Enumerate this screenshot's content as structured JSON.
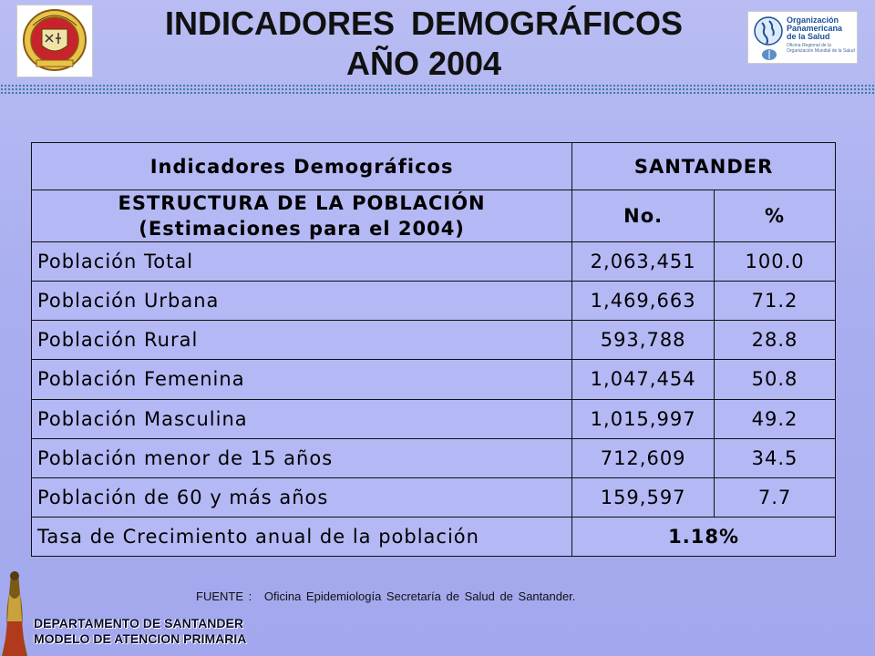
{
  "header": {
    "title_line1": "INDICADORES   DEMOGRÁFICOS",
    "title_line2": "AÑO 2004",
    "left_logo": {
      "name": "departamento-de-santander-seal",
      "text": "DEPARTAMENTO DE SANTANDER"
    },
    "right_logo": {
      "name_lines": [
        "Organización",
        "Panamericana",
        "de la Salud"
      ],
      "subtitle": "Oficina Regional de la Organización Mundial de la Salud",
      "brand_color": "#1b4f96"
    }
  },
  "table": {
    "heading": "Indicadores Demográficos",
    "structure_line1": "ESTRUCTURA DE LA POBLACIÓN",
    "structure_line2": "(Estimaciones para el 2004)",
    "region": "SANTANDER",
    "col_number": "No.",
    "col_percent": "%",
    "rows": [
      {
        "label": "Población Total",
        "number": "2,063,451",
        "percent": "100.0"
      },
      {
        "label": "Población Urbana",
        "number": "1,469,663",
        "percent": "71.2"
      },
      {
        "label": "Población Rural",
        "number": "593,788",
        "percent": "28.8"
      },
      {
        "label": "Población Femenina",
        "number": "1,047,454",
        "percent": "50.8"
      },
      {
        "label": "Población Masculina",
        "number": "1,015,997",
        "percent": "49.2"
      },
      {
        "label": "Población menor de 15 años",
        "number": "712,609",
        "percent": "34.5"
      },
      {
        "label": "Población de 60 y más años",
        "number": "159,597",
        "percent": "7.7"
      }
    ],
    "growth": {
      "label": "Tasa de Crecimiento anual de la población",
      "value": "1.18%"
    }
  },
  "source": {
    "label": "FUENTE :",
    "text": "Oficina Epidemiología Secretaría de Salud de Santander."
  },
  "footer": {
    "line1": "DEPARTAMENTO DE SANTANDER",
    "line2": "MODELO DE ATENCION PRIMARIA"
  },
  "colors": {
    "background": "#a9aef0",
    "table_fill": "#b4b8f4",
    "border": "#111111"
  }
}
